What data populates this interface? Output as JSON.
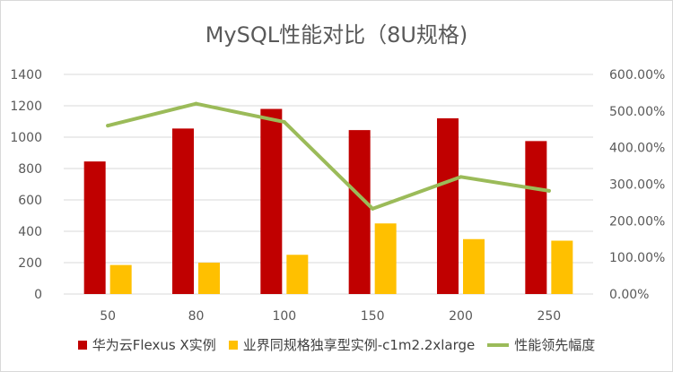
{
  "chart_data": {
    "type": "bar",
    "title": "MySQL性能对比（8U规格)",
    "categories": [
      "50",
      "80",
      "100",
      "150",
      "200",
      "250"
    ],
    "ylim": [
      0,
      1400
    ],
    "yticks": [
      "0",
      "200",
      "400",
      "600",
      "800",
      "1000",
      "1200",
      "1400"
    ],
    "y2lim": [
      0,
      600
    ],
    "y2ticks": [
      "0.00%",
      "100.00%",
      "200.00%",
      "300.00%",
      "400.00%",
      "500.00%",
      "600.00%"
    ],
    "grid": true,
    "legend_position": "bottom",
    "series": [
      {
        "name": "华为云Flexus X实例",
        "kind": "bar",
        "axis": "left",
        "color": "#c00000",
        "values": [
          845,
          1055,
          1180,
          1045,
          1120,
          975
        ]
      },
      {
        "name": "业界同规格独享型实例-c1m2.2xlarge",
        "kind": "bar",
        "axis": "left",
        "color": "#ffc000",
        "values": [
          185,
          200,
          250,
          450,
          350,
          340
        ]
      },
      {
        "name": "性能领先幅度",
        "kind": "line",
        "axis": "right",
        "color": "#9bbb59",
        "values": [
          460,
          520,
          470,
          233,
          320,
          282
        ]
      }
    ]
  }
}
